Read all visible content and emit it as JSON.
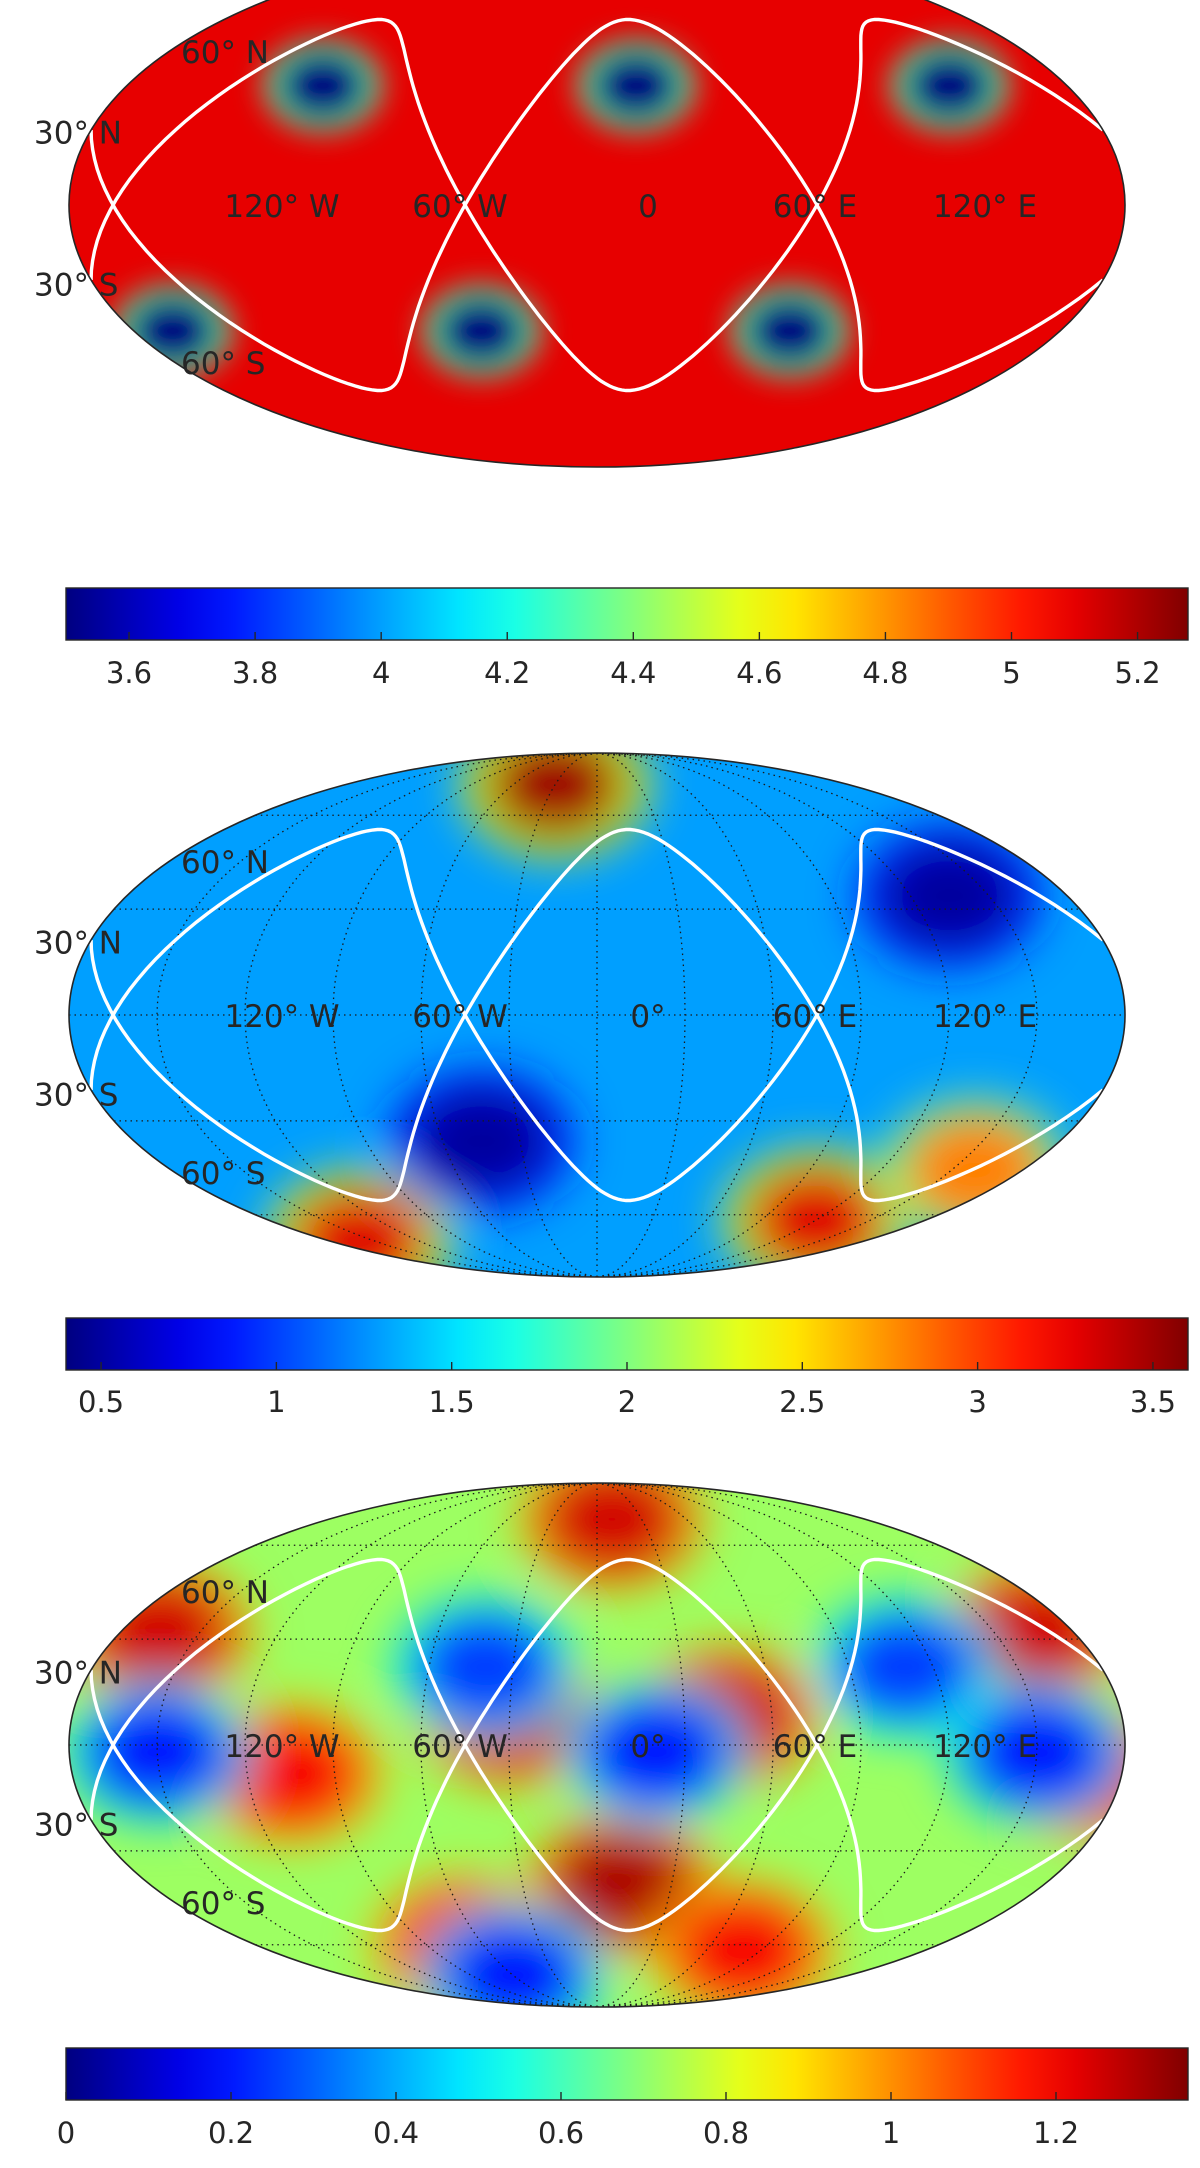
{
  "chart_data": [
    {
      "type": "heatmap",
      "projection": "mollweide",
      "lat_labels": [
        "60° N",
        "30° N",
        "30° S",
        "60° S"
      ],
      "lon_labels": [
        "120° W",
        "60° W",
        "0",
        "60° E",
        "120° E"
      ],
      "colorbar": {
        "colormap": "jet",
        "range": [
          3.5,
          5.28
        ],
        "ticks": [
          "3.6",
          "3.8",
          "4",
          "4.2",
          "4.4",
          "4.6",
          "4.8",
          "5",
          "5.2"
        ],
        "tick_values": [
          3.6,
          3.8,
          4.0,
          4.2,
          4.4,
          4.6,
          4.8,
          5.0,
          5.2
        ]
      },
      "background_value": 5.1,
      "features": [
        {
          "kind": "minimum",
          "lon": -105,
          "lat": 34,
          "value": 3.5
        },
        {
          "kind": "minimum",
          "lon": 15,
          "lat": 34,
          "value": 3.5
        },
        {
          "kind": "minimum",
          "lon": 135,
          "lat": 34,
          "value": 3.5
        },
        {
          "kind": "minimum",
          "lon": -165,
          "lat": -36,
          "value": 3.5
        },
        {
          "kind": "minimum",
          "lon": -45,
          "lat": -36,
          "value": 3.5
        },
        {
          "kind": "minimum",
          "lon": 75,
          "lat": -36,
          "value": 3.5
        }
      ],
      "grid": false
    },
    {
      "type": "heatmap",
      "projection": "mollweide",
      "lat_labels": [
        "60° N",
        "30° N",
        "30° S",
        "60° S"
      ],
      "lon_labels": [
        "120° W",
        "60° W",
        "0°",
        "60° E",
        "120° E"
      ],
      "colorbar": {
        "colormap": "jet",
        "range": [
          0.4,
          3.6
        ],
        "ticks": [
          "0.5",
          "1",
          "1.5",
          "2",
          "2.5",
          "3",
          "3.5"
        ],
        "tick_values": [
          0.5,
          1.0,
          1.5,
          2.0,
          2.5,
          3.0,
          3.5
        ]
      },
      "background_value": 1.3,
      "features": [
        {
          "kind": "maximum",
          "lon": -30,
          "lat": 72,
          "value": 3.5
        },
        {
          "kind": "maximum",
          "lon": -160,
          "lat": -70,
          "value": 3.3
        },
        {
          "kind": "maximum",
          "lon": 120,
          "lat": -62,
          "value": 3.3
        },
        {
          "kind": "maximum",
          "lon": 160,
          "lat": -45,
          "value": 2.8
        },
        {
          "kind": "minimum",
          "lon": -45,
          "lat": -36,
          "value": 0.5
        },
        {
          "kind": "minimum",
          "lon": 135,
          "lat": 34,
          "value": 0.5
        }
      ],
      "grid": true
    },
    {
      "type": "heatmap",
      "projection": "mollweide",
      "lat_labels": [
        "60° N",
        "30° N",
        "30° S",
        "60° S"
      ],
      "lon_labels": [
        "120° W",
        "60° W",
        "0°",
        "60° E",
        "120° E"
      ],
      "colorbar": {
        "colormap": "jet",
        "range": [
          0,
          1.36
        ],
        "ticks": [
          "0",
          "0.2",
          "0.4",
          "0.6",
          "0.8",
          "1",
          "1.2"
        ],
        "tick_values": [
          0,
          0.2,
          0.4,
          0.6,
          0.8,
          1.0,
          1.2
        ]
      },
      "background_value": 0.72,
      "features": [
        {
          "kind": "maximum",
          "lon": -165,
          "lat": 32,
          "value": 1.25
        },
        {
          "kind": "maximum",
          "lon": 165,
          "lat": 32,
          "value": 1.25
        },
        {
          "kind": "maximum",
          "lon": -30,
          "lat": 8,
          "value": 1.25
        },
        {
          "kind": "maximum",
          "lon": 45,
          "lat": 8,
          "value": 1.25
        },
        {
          "kind": "maximum",
          "lon": 10,
          "lat": -40,
          "value": 1.3
        },
        {
          "kind": "maximum",
          "lon": -105,
          "lat": -8,
          "value": 1.2
        },
        {
          "kind": "maximum",
          "lon": 170,
          "lat": -8,
          "value": 1.2
        },
        {
          "kind": "maximum",
          "lon": -70,
          "lat": -60,
          "value": 1.2
        },
        {
          "kind": "maximum",
          "lon": 80,
          "lat": -62,
          "value": 1.2
        },
        {
          "kind": "maximum",
          "lon": 10,
          "lat": 70,
          "value": 1.25
        },
        {
          "kind": "minimum",
          "lon": 20,
          "lat": -2,
          "value": 0.2
        },
        {
          "kind": "minimum",
          "lon": -150,
          "lat": -2,
          "value": 0.2
        },
        {
          "kind": "minimum",
          "lon": 150,
          "lat": -2,
          "value": 0.2
        },
        {
          "kind": "minimum",
          "lon": -40,
          "lat": 22,
          "value": 0.25
        },
        {
          "kind": "minimum",
          "lon": 110,
          "lat": 22,
          "value": 0.25
        },
        {
          "kind": "minimum",
          "lon": -60,
          "lat": -72,
          "value": 0.2
        }
      ],
      "grid": true
    }
  ],
  "overlay": {
    "line_color": "#ffffff",
    "track_a": {
      "lat_amplitude": 55,
      "phase_lon": -165,
      "period_lon": 240
    },
    "track_b": {
      "lat_amplitude": 55,
      "phase_lon": -45,
      "period_lon": 240
    }
  }
}
